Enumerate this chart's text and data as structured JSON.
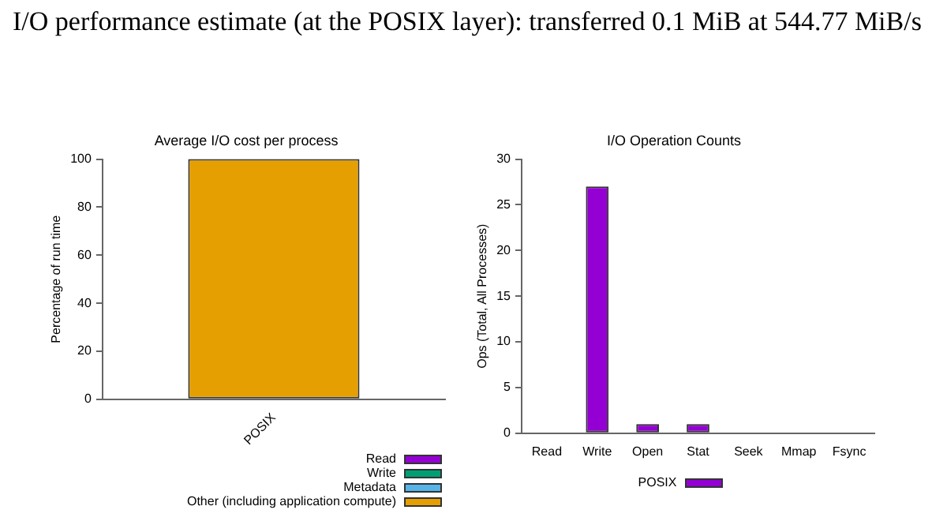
{
  "chart_data": [
    {
      "type": "other",
      "title": "I/O performance estimate (at the POSIX layer): transferred 0.1 MiB at 544.77 MiB/s"
    },
    {
      "type": "bar",
      "title": "Average I/O cost per process",
      "ylabel": "Percentage of run time",
      "categories": [
        "POSIX"
      ],
      "stacked": true,
      "ylim": [
        0,
        100
      ],
      "yticks": [
        0,
        20,
        40,
        60,
        80,
        100
      ],
      "legend": "bottom right",
      "grid": false,
      "series": [
        {
          "name": "Read",
          "color": "#9400d3",
          "values": [
            0
          ]
        },
        {
          "name": "Write",
          "color": "#009e73",
          "values": [
            0
          ]
        },
        {
          "name": "Metadata",
          "color": "#56b4e9",
          "values": [
            0
          ]
        },
        {
          "name": "Other (including application compute)",
          "color": "#e69f00",
          "values": [
            100
          ]
        }
      ]
    },
    {
      "type": "bar",
      "title": "I/O Operation Counts",
      "ylabel": "Ops (Total, All Processes)",
      "categories": [
        "Read",
        "Write",
        "Open",
        "Stat",
        "Seek",
        "Mmap",
        "Fsync"
      ],
      "ylim": [
        0,
        30
      ],
      "yticks": [
        0,
        5,
        10,
        15,
        20,
        25,
        30
      ],
      "legend": "bottom",
      "grid": false,
      "series": [
        {
          "name": "POSIX",
          "color": "#9400d3",
          "values": [
            0,
            27,
            1,
            1,
            0,
            0,
            0
          ]
        }
      ]
    }
  ]
}
